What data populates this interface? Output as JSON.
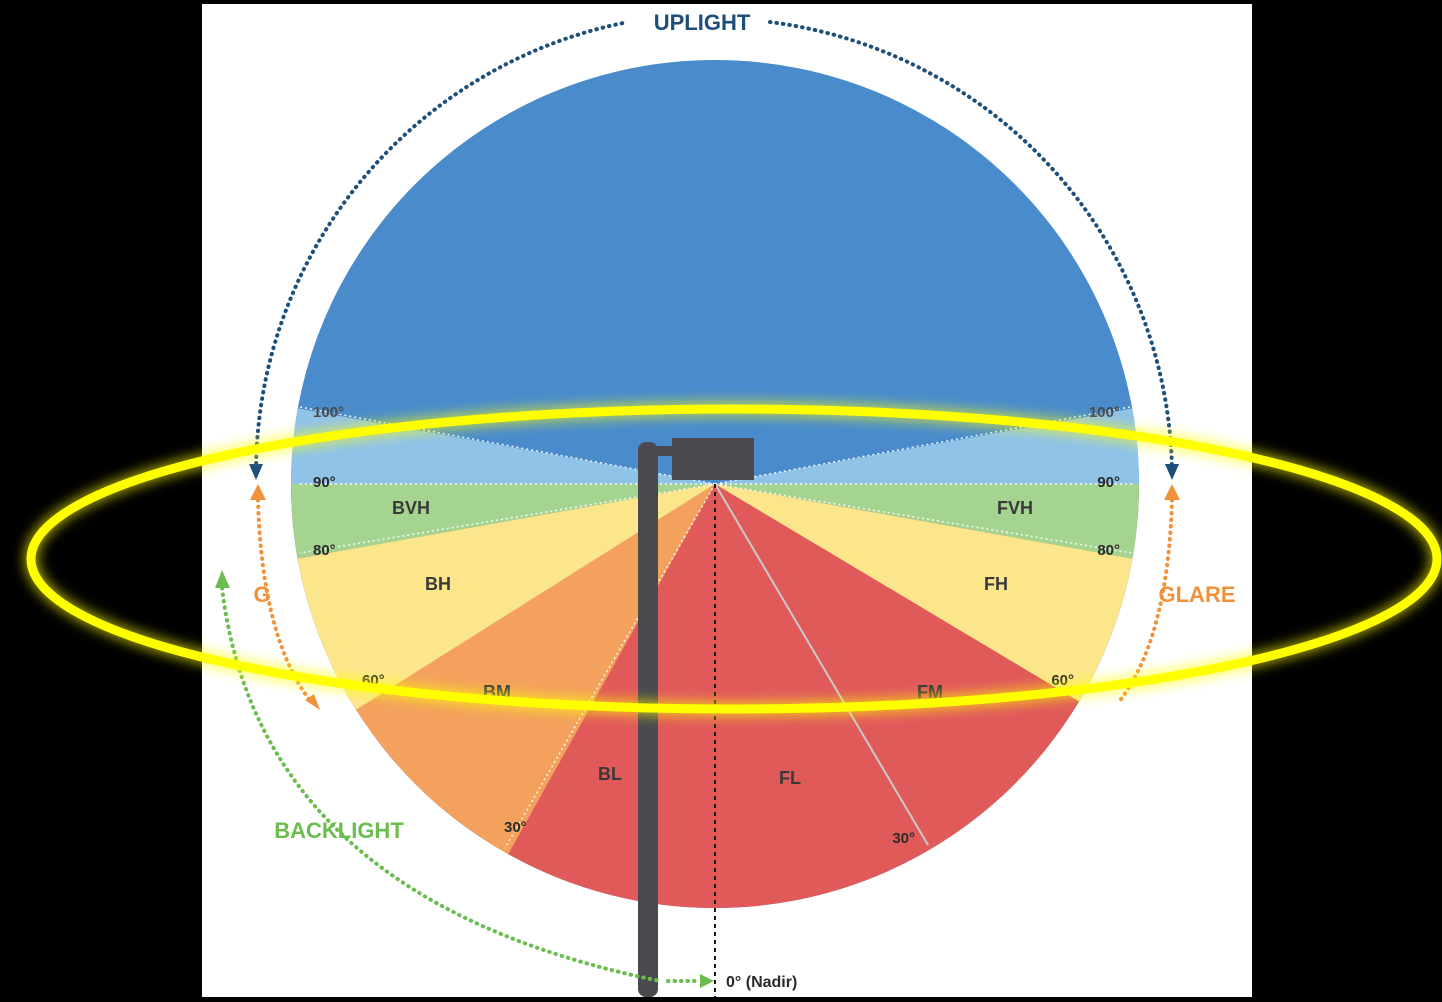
{
  "colors": {
    "page_background": "#000000",
    "panel_background": "#ffffff",
    "uplight": "#4a8ccb",
    "uplight_high": "#8fc3e8",
    "very_high": "#a4d48f",
    "high": "#fbe68c",
    "mid": "#f3a15c",
    "low": "#e05a5a",
    "pole": "#4a4a4e",
    "uplight_arrow": "#1e4e7a",
    "glare_arrow": "#f0923b",
    "backlight_arrow": "#6bbd4f",
    "highlight_ring": "#ffff00"
  },
  "categories": {
    "uplight": "UPLIGHT",
    "glare": "GLARE",
    "glare_short": "G",
    "backlight": "BACKLIGHT"
  },
  "zones": {
    "bvh": "BVH",
    "bh": "BH",
    "bm": "BM",
    "bl": "BL",
    "fvh": "FVH",
    "fh": "FH",
    "fm": "FM",
    "fl": "FL"
  },
  "angles": {
    "left_100": "100°",
    "left_90": "90°",
    "left_80": "80°",
    "left_60": "60°",
    "left_30": "30°",
    "right_100": "100°",
    "right_90": "90°",
    "right_80": "80°",
    "right_60": "60°",
    "right_30": "30°",
    "nadir": "0° (Nadir)"
  },
  "icons": {
    "pole": "street-light-pole-icon",
    "fixture": "luminaire-head-icon",
    "arrow": "arrowhead-icon"
  }
}
